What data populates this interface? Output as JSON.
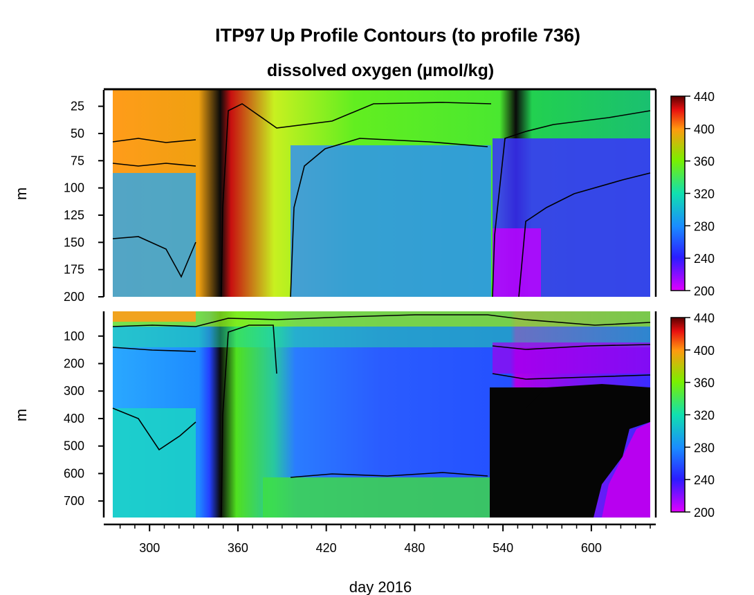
{
  "chart_data": [
    {
      "type": "heatmap",
      "title": "ITP97 Up Profile Contours (to profile 736)",
      "subtitle": "dissolved oxygen (µmol/kg)",
      "ylabel": "m",
      "xlim": [
        275,
        640
      ],
      "ylim": [
        200,
        10
      ],
      "y_ticks": [
        "25",
        "50",
        "75",
        "100",
        "125",
        "150",
        "175",
        "200"
      ],
      "colorbar": {
        "min": 200,
        "max": 440,
        "ticks": [
          "440",
          "400",
          "360",
          "320",
          "280",
          "240",
          "200"
        ]
      }
    },
    {
      "type": "heatmap",
      "ylabel": "m",
      "xlabel": "day 2016",
      "xlim": [
        275,
        640
      ],
      "ylim": [
        760,
        10
      ],
      "y_ticks": [
        "100",
        "200",
        "300",
        "400",
        "500",
        "600",
        "700"
      ],
      "x_ticks": [
        "300",
        "360",
        "420",
        "480",
        "540",
        "600"
      ],
      "colorbar": {
        "min": 200,
        "max": 440,
        "ticks": [
          "440",
          "400",
          "360",
          "320",
          "280",
          "240",
          "200"
        ]
      }
    }
  ]
}
